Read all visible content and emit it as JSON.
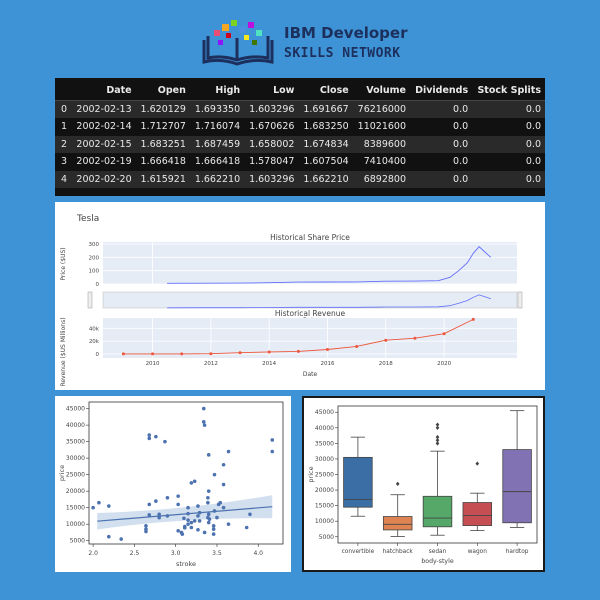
{
  "header": {
    "brand_line1": "IBM Developer",
    "brand_line2": "SKILLS NETWORK",
    "logo_icon": "book-with-colored-squares-icon",
    "accent_color": "#1d2f5c"
  },
  "dataframe": {
    "columns": [
      "",
      "Date",
      "Open",
      "High",
      "Low",
      "Close",
      "Volume",
      "Dividends",
      "Stock Splits"
    ],
    "rows": [
      [
        "0",
        "2002-02-13",
        "1.620129",
        "1.693350",
        "1.603296",
        "1.691667",
        "76216000",
        "0.0",
        "0.0"
      ],
      [
        "1",
        "2002-02-14",
        "1.712707",
        "1.716074",
        "1.670626",
        "1.683250",
        "11021600",
        "0.0",
        "0.0"
      ],
      [
        "2",
        "2002-02-15",
        "1.683251",
        "1.687459",
        "1.658002",
        "1.674834",
        "8389600",
        "0.0",
        "0.0"
      ],
      [
        "3",
        "2002-02-19",
        "1.666418",
        "1.666418",
        "1.578047",
        "1.607504",
        "7410400",
        "0.0",
        "0.0"
      ],
      [
        "4",
        "2002-02-20",
        "1.615921",
        "1.662210",
        "1.603296",
        "1.662210",
        "6892800",
        "0.0",
        "0.0"
      ]
    ]
  },
  "chart_data": [
    {
      "type": "line",
      "title": "Tesla",
      "subplot_titles": [
        "Historical Share Price",
        "Historical Revenue"
      ],
      "share_price": {
        "ylabel": "Price ($US)",
        "yticks": [
          "0",
          "100",
          "200",
          "300"
        ],
        "xlabel": "Date",
        "color": "#636efa",
        "x": [
          2010.5,
          2012,
          2013,
          2014,
          2015,
          2016,
          2017,
          2018,
          2019,
          2019.8,
          2020.2,
          2020.5,
          2020.8,
          2021.0,
          2021.2,
          2021.4,
          2021.6
        ],
        "y": [
          5,
          6,
          7,
          10,
          14,
          15,
          16,
          21,
          22,
          25,
          50,
          100,
          160,
          230,
          280,
          240,
          200
        ]
      },
      "revenue": {
        "ylabel": "Revenue ($US Millions)",
        "xlabel": "Date",
        "yticks": [
          "0",
          "20k",
          "40k"
        ],
        "xticks": [
          "2010",
          "2012",
          "2014",
          "2016",
          "2018",
          "2020"
        ],
        "color": "#ef553b",
        "x": [
          2009,
          2010,
          2011,
          2012,
          2013,
          2014,
          2015,
          2016,
          2017,
          2018,
          2019,
          2020,
          2021
        ],
        "y": [
          112,
          117,
          204,
          413,
          2013,
          3198,
          4046,
          7000,
          11759,
          21461,
          24578,
          31536,
          53823
        ]
      }
    },
    {
      "type": "scatter",
      "xlabel": "stroke",
      "ylabel": "price",
      "xticks": [
        "2.0",
        "2.5",
        "3.0",
        "3.5",
        "4.0"
      ],
      "yticks": [
        "5000",
        "10000",
        "15000",
        "20000",
        "25000",
        "30000",
        "35000",
        "40000",
        "45000"
      ],
      "xlim": [
        1.95,
        4.3
      ],
      "ylim": [
        4000,
        47000
      ],
      "color": "#4c72b0",
      "regression": {
        "x": [
          2.05,
          4.17
        ],
        "y": [
          10900,
          15300
        ]
      },
      "x": [
        2.0,
        2.07,
        2.19,
        2.19,
        2.34,
        2.64,
        2.64,
        2.64,
        2.68,
        2.68,
        2.68,
        2.76,
        2.76,
        2.8,
        2.8,
        2.87,
        2.9,
        2.9,
        3.03,
        3.03,
        3.07,
        3.08,
        3.11,
        3.11,
        3.15,
        3.15,
        3.15,
        3.19,
        3.19,
        3.23,
        3.23,
        3.27,
        3.27,
        3.29,
        3.34,
        3.34,
        3.35,
        3.39,
        3.39,
        3.4,
        3.4,
        3.41,
        3.46,
        3.46,
        3.46,
        3.47,
        3.5,
        3.52,
        3.54,
        3.58,
        3.58,
        3.64,
        3.64,
        3.86,
        3.9,
        4.17,
        4.17,
        3.35,
        3.4,
        3.27,
        3.1,
        3.03,
        2.68,
        3.15,
        3.29,
        3.47,
        3.39,
        3.19,
        3.4,
        3.58
      ],
      "y": [
        15000,
        16500,
        15500,
        6200,
        5500,
        9500,
        8500,
        7800,
        36000,
        37000,
        16000,
        17000,
        36500,
        13000,
        12000,
        35000,
        18000,
        12500,
        18500,
        16000,
        7500,
        7000,
        9300,
        8900,
        10000,
        13200,
        11200,
        10500,
        9000,
        23000,
        11000,
        8300,
        15500,
        13500,
        45000,
        41000,
        40000,
        16500,
        12000,
        31000,
        13000,
        11500,
        9500,
        8500,
        7000,
        25000,
        12000,
        16000,
        16500,
        22000,
        28000,
        32000,
        10000,
        9000,
        13000,
        35500,
        32000,
        7500,
        10500,
        12500,
        11800,
        8000,
        12800,
        15000,
        11000,
        14000,
        18000,
        22500,
        20000,
        15000
      ]
    },
    {
      "type": "box",
      "xlabel": "body-style",
      "ylabel": "price",
      "yticks": [
        "5000",
        "10000",
        "15000",
        "20000",
        "25000",
        "30000",
        "35000",
        "40000",
        "45000"
      ],
      "ylim": [
        3000,
        47000
      ],
      "categories": [
        "convertible",
        "hatchback",
        "sedan",
        "wagon",
        "hardtop"
      ],
      "boxes": [
        {
          "name": "convertible",
          "min": 11600,
          "q1": 14500,
          "median": 17000,
          "q3": 30500,
          "max": 37000,
          "outliers": [],
          "color": "#3a6ea5"
        },
        {
          "name": "hatchback",
          "min": 5100,
          "q1": 7200,
          "median": 9000,
          "q3": 11500,
          "max": 18500,
          "outliers": [
            22000
          ],
          "color": "#dd8452"
        },
        {
          "name": "sedan",
          "min": 5500,
          "q1": 8200,
          "median": 11000,
          "q3": 18000,
          "max": 32500,
          "outliers": [
            35000,
            36000,
            37000,
            41000,
            40000
          ],
          "color": "#55a868"
        },
        {
          "name": "wagon",
          "min": 7000,
          "q1": 8600,
          "median": 11800,
          "q3": 16000,
          "max": 19000,
          "outliers": [
            28500
          ],
          "color": "#c44e52"
        },
        {
          "name": "hardtop",
          "min": 8000,
          "q1": 9500,
          "median": 19500,
          "q3": 33000,
          "max": 45500,
          "outliers": [],
          "color": "#8172b3"
        }
      ]
    }
  ]
}
